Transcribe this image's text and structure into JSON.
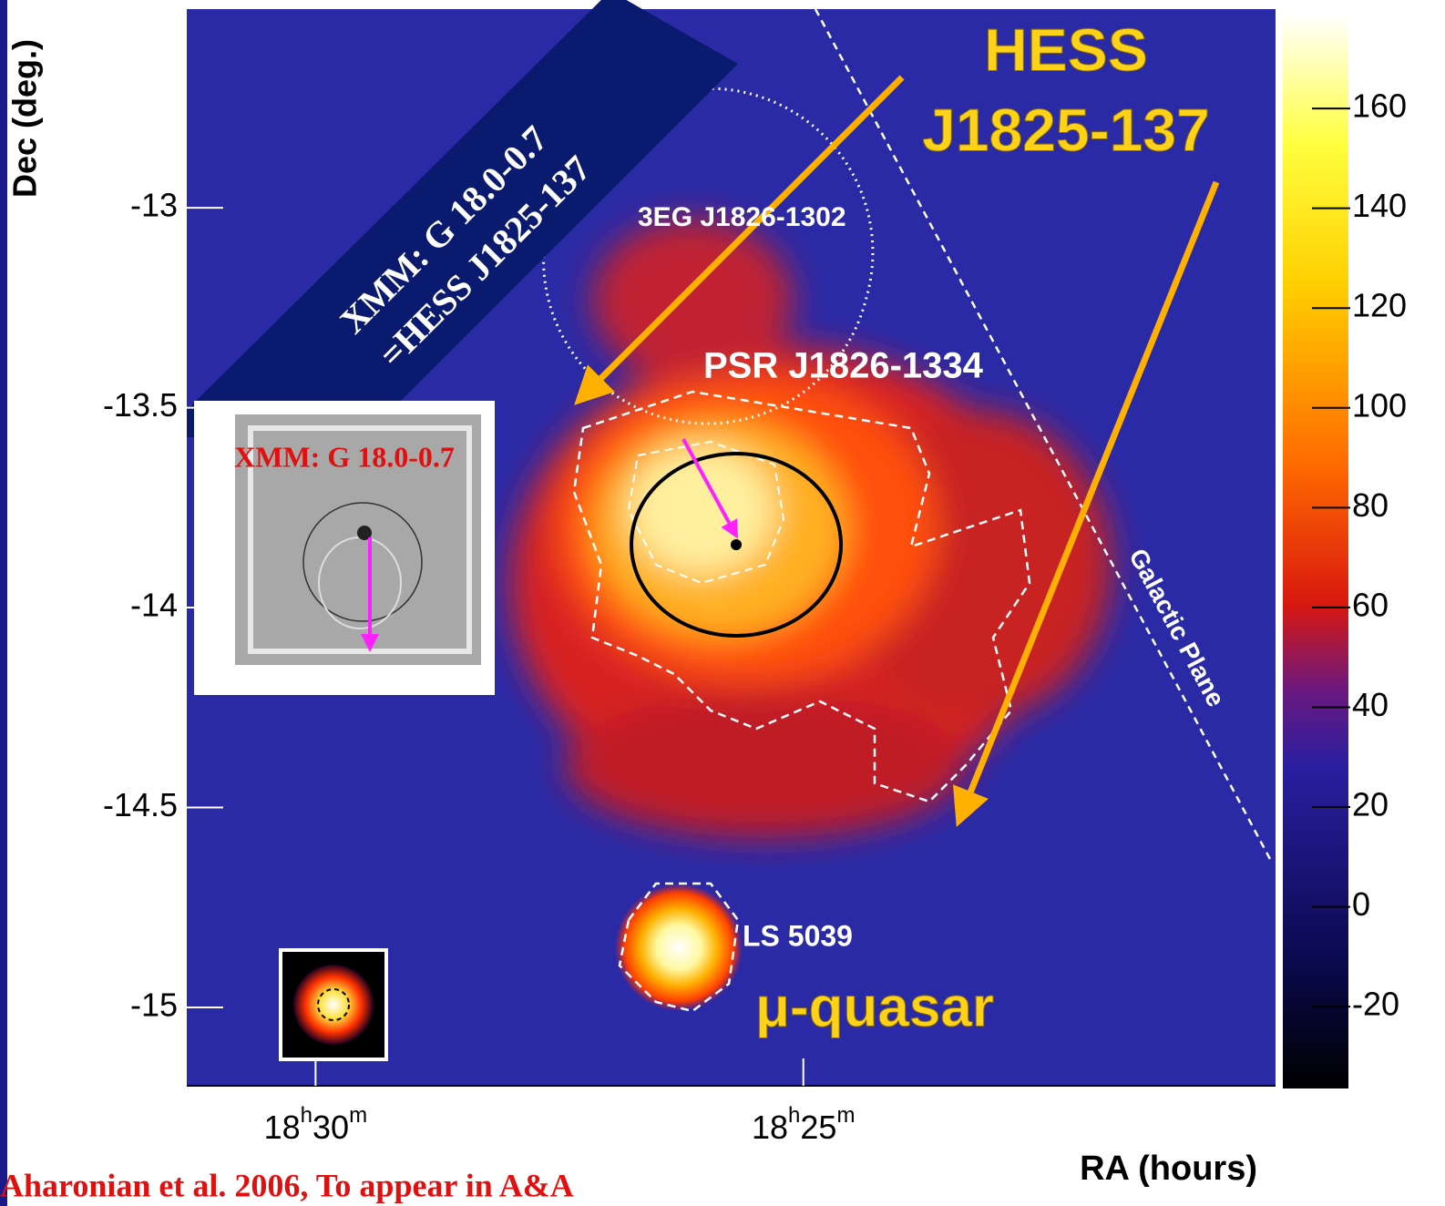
{
  "chart_data": {
    "type": "sky-map",
    "x_label": "RA (hours)",
    "y_label": "Dec (deg.)",
    "xlim": [
      18.522,
      18.336
    ],
    "xticks": [
      {
        "value": 18.5,
        "label": "18h30m"
      },
      {
        "value": 18.41667,
        "label": "18h25m"
      }
    ],
    "ylim": [
      -15.196,
      -12.503
    ],
    "yticks": [
      -13,
      -13.5,
      -14,
      -14.5,
      -15
    ],
    "colorbar_lim": [
      -36.4,
      179
    ],
    "colorbar_ticks": [
      160,
      140,
      120,
      100,
      80,
      60,
      40,
      20,
      0,
      -20
    ],
    "annotations": {
      "hess": [
        "HESS",
        "J1825-137"
      ],
      "xmm_banner": [
        "XMM: G 18.0-0.7",
        "=HESS J1825-137"
      ],
      "egret": "3EG J1826-1302",
      "pulsar": "PSR J1826-1334",
      "galactic_plane": "Galactic Plane",
      "ls5039": "LS 5039",
      "microquasar": "μ-quasar",
      "inset_label": "XMM: G 18.0-0.7",
      "reference": "Aharonian et al. 2006, To appear in A&A"
    }
  }
}
